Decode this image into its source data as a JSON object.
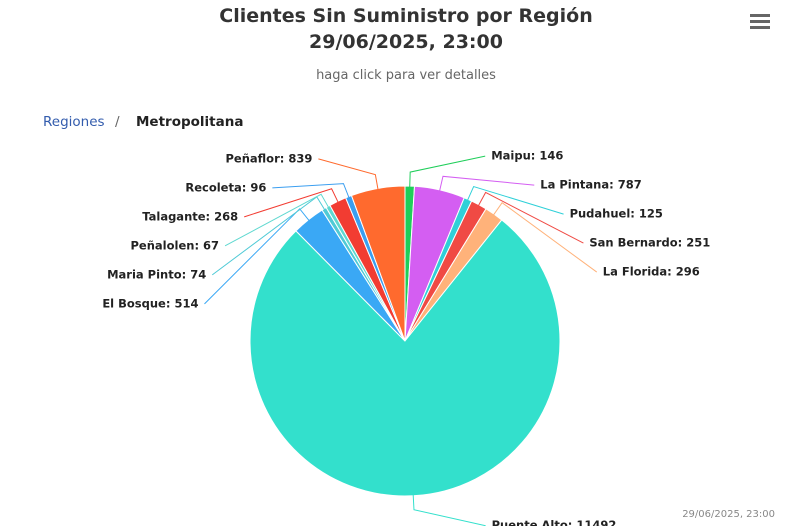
{
  "chart_data": {
    "type": "pie",
    "title": [
      "Clientes Sin Suministro por Región",
      "29/06/2025, 23:00"
    ],
    "subtitle": "haga click para ver detalles",
    "breadcrumb": [
      "Regiones",
      "/",
      "Metropolitana"
    ],
    "credits": "29/06/2025, 23:00",
    "categories": [
      "Maipu",
      "La Pintana",
      "Pudahuel",
      "San Bernardo",
      "La Florida",
      "Puente Alto",
      "El Bosque",
      "Maria Pinto",
      "Peñalolen",
      "Talagante",
      "Recoleta",
      "Peñaflor"
    ],
    "values": [
      146,
      787,
      125,
      251,
      296,
      11492,
      514,
      74,
      67,
      268,
      96,
      839
    ],
    "value_labels": [
      "Maipu: 146",
      "La Pintana: 787",
      "Pudahuel: 125",
      "San Bernardo: 251",
      "La Florida: 296",
      "Puente Alto: 11492",
      "El Bosque: 514",
      "Maria Pinto: 74",
      "Peñalolen: 67",
      "Talagante: 268",
      "Recoleta: 96",
      "Peñaflor: 839"
    ],
    "colors": [
      "#1fce5a",
      "#d45ef2",
      "#2fd0d8",
      "#f04a44",
      "#ffb27a",
      "#33e0cc",
      "#3aa8f5",
      "#4fcad6",
      "#5fd8d0",
      "#f23c32",
      "#3a9ef0",
      "#ff6a2e"
    ]
  }
}
